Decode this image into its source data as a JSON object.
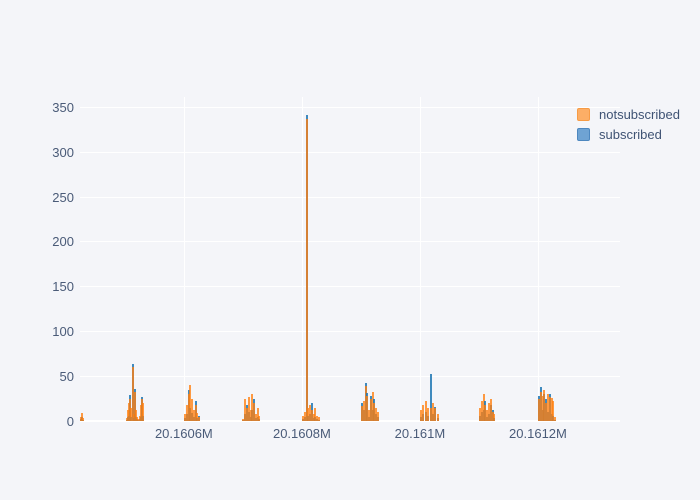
{
  "figure": {
    "background": "#f4f5f9",
    "grid_color": "#ffffff",
    "text_color": "#4a5b78"
  },
  "legend": {
    "items": [
      {
        "label": "notsubscribed",
        "fill": "#fcae66",
        "border": "#f79b45"
      },
      {
        "label": "subscribed",
        "fill": "#6fa3d3",
        "border": "#4d87bf"
      }
    ]
  },
  "chart_data": {
    "type": "bar",
    "subtype": "overlaid-histogram-of-dates",
    "title": "",
    "xlabel": "",
    "ylabel": "",
    "grid": true,
    "legend_position": "top-right",
    "series_names": [
      "notsubscribed",
      "subscribed"
    ],
    "series_colors": {
      "notsubscribed": "#ff7f0e",
      "subscribed": "#1f77b4"
    },
    "y_ticks": [
      0,
      50,
      100,
      150,
      200,
      250,
      300,
      350
    ],
    "y_range": [
      0,
      361
    ],
    "x_range": [
      20160424,
      20161339
    ],
    "x_ticks": [
      {
        "value": 20160600,
        "label": "20.1606M"
      },
      {
        "value": 20160800,
        "label": "20.1608M"
      },
      {
        "value": 20161000,
        "label": "20.161M"
      },
      {
        "value": 20161200,
        "label": "20.1612M"
      }
    ],
    "bin_fields": [
      "date_value",
      "notsubscribed",
      "subscribed"
    ],
    "bins": [
      [
        20160425,
        5,
        2
      ],
      [
        20160427,
        9,
        4
      ],
      [
        20160429,
        3,
        1
      ],
      [
        20160503,
        3,
        1
      ],
      [
        20160505,
        12,
        4
      ],
      [
        20160507,
        20,
        6
      ],
      [
        20160509,
        25,
        29
      ],
      [
        20160511,
        14,
        5
      ],
      [
        20160513,
        60,
        63
      ],
      [
        20160515,
        8,
        3
      ],
      [
        20160517,
        32,
        36
      ],
      [
        20160519,
        12,
        4
      ],
      [
        20160521,
        5,
        2
      ],
      [
        20160523,
        2,
        1
      ],
      [
        20160525,
        6,
        2
      ],
      [
        20160527,
        18,
        5
      ],
      [
        20160529,
        25,
        27
      ],
      [
        20160531,
        20,
        6
      ],
      [
        20160602,
        8,
        3
      ],
      [
        20160605,
        18,
        8
      ],
      [
        20160608,
        30,
        34
      ],
      [
        20160611,
        40,
        14
      ],
      [
        20160614,
        25,
        9
      ],
      [
        20160617,
        12,
        4
      ],
      [
        20160620,
        18,
        22
      ],
      [
        20160623,
        9,
        3
      ],
      [
        20160626,
        5,
        6
      ],
      [
        20160701,
        2,
        1
      ],
      [
        20160704,
        25,
        8
      ],
      [
        20160707,
        15,
        18
      ],
      [
        20160710,
        27,
        10
      ],
      [
        20160713,
        12,
        4
      ],
      [
        20160716,
        30,
        12
      ],
      [
        20160719,
        20,
        24
      ],
      [
        20160722,
        8,
        3
      ],
      [
        20160725,
        14,
        5
      ],
      [
        20160728,
        6,
        2
      ],
      [
        20160802,
        6,
        2
      ],
      [
        20160805,
        10,
        4
      ],
      [
        20160808,
        337,
        341
      ],
      [
        20160811,
        15,
        6
      ],
      [
        20160814,
        18,
        8
      ],
      [
        20160817,
        12,
        20
      ],
      [
        20160820,
        8,
        3
      ],
      [
        20160823,
        14,
        5
      ],
      [
        20160826,
        6,
        2
      ],
      [
        20160829,
        4,
        1
      ],
      [
        20160902,
        17,
        20
      ],
      [
        20160905,
        22,
        12
      ],
      [
        20160908,
        39,
        42
      ],
      [
        20160911,
        28,
        31
      ],
      [
        20160914,
        12,
        5
      ],
      [
        20160917,
        25,
        28
      ],
      [
        20160920,
        32,
        12
      ],
      [
        20160923,
        20,
        24
      ],
      [
        20160926,
        15,
        8
      ],
      [
        20160929,
        10,
        4
      ],
      [
        20161002,
        12,
        5
      ],
      [
        20161006,
        18,
        8
      ],
      [
        20161010,
        22,
        10
      ],
      [
        20161014,
        15,
        6
      ],
      [
        20161018,
        14,
        52
      ],
      [
        20161022,
        20,
        8
      ],
      [
        20161026,
        14,
        16
      ],
      [
        20161030,
        8,
        3
      ],
      [
        20161102,
        14,
        6
      ],
      [
        20161105,
        22,
        10
      ],
      [
        20161108,
        30,
        12
      ],
      [
        20161111,
        18,
        22
      ],
      [
        20161114,
        12,
        4
      ],
      [
        20161117,
        20,
        8
      ],
      [
        20161120,
        25,
        18
      ],
      [
        20161123,
        10,
        12
      ],
      [
        20161126,
        8,
        3
      ],
      [
        20161202,
        25,
        28
      ],
      [
        20161205,
        32,
        38
      ],
      [
        20161208,
        28,
        12
      ],
      [
        20161211,
        35,
        30
      ],
      [
        20161214,
        20,
        24
      ],
      [
        20161217,
        30,
        10
      ],
      [
        20161220,
        27,
        30
      ],
      [
        20161223,
        26,
        8
      ],
      [
        20161226,
        22,
        6
      ],
      [
        20161229,
        4,
        1
      ]
    ]
  }
}
